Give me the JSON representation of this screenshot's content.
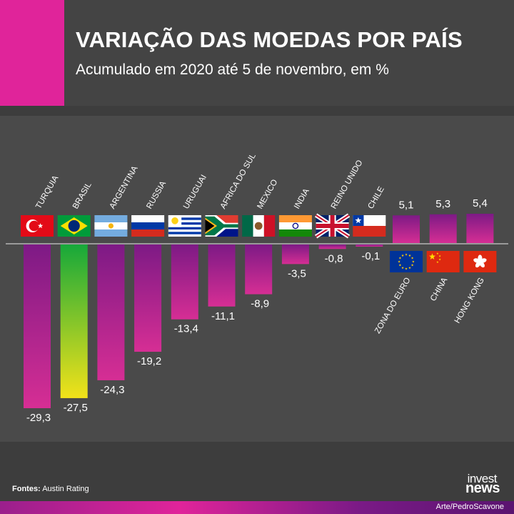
{
  "header": {
    "title": "VARIAÇÃO DAS MOEDAS POR PAÍS",
    "subtitle": "Acumulado em 2020 até 5 de novembro, em %"
  },
  "footer": {
    "source_label": "Fontes:",
    "source_value": "Austin Rating",
    "credit": "Arte/PedroScavone",
    "logo_line1": "invest",
    "logo_line2": "news"
  },
  "colors": {
    "accent_pink": "#e0249a",
    "bar_purple_top": "#7d1a85",
    "bar_magenta_bottom": "#d62e94",
    "bar_brazil_top": "#16a83a",
    "bar_brazil_bottom": "#f2e21a",
    "text_white": "#ffffff",
    "baseline": "#9a9a9a"
  },
  "chart_data": {
    "type": "bar",
    "title": "VARIAÇÃO DAS MOEDAS POR PAÍS",
    "subtitle": "Acumulado em 2020 até 5 de novembro, em %",
    "xlabel": "",
    "ylabel": "",
    "ylim": [
      -29.3,
      5.4
    ],
    "grid": false,
    "legend": "none",
    "categories": [
      "TURQUIA",
      "BRASIL",
      "ARGENTINA",
      "RUSSIA",
      "URUGUAI",
      "AFRICA DO SUL",
      "MEXICO",
      "INDIA",
      "REINO UNIDO",
      "CHILE",
      "ZONA DO EURO",
      "CHINA",
      "HONG KONG"
    ],
    "values": [
      -29.3,
      -27.5,
      -24.3,
      -19.2,
      -13.4,
      -11.1,
      -8.9,
      -3.5,
      -0.8,
      -0.1,
      5.1,
      5.3,
      5.4
    ],
    "value_labels": [
      "-29,3",
      "-27,5",
      "-24,3",
      "-19,2",
      "-13,4",
      "-11,1",
      "-8,9",
      "-3,5",
      "-0,8",
      "-0,1",
      "5,1",
      "5,3",
      "5,4"
    ],
    "flags": [
      "turkey-flag",
      "brazil-flag",
      "argentina-flag",
      "russia-flag",
      "uruguay-flag",
      "south-africa-flag",
      "mexico-flag",
      "india-flag",
      "uk-flag",
      "chile-flag",
      "eu-flag",
      "china-flag",
      "hong-kong-flag"
    ]
  }
}
